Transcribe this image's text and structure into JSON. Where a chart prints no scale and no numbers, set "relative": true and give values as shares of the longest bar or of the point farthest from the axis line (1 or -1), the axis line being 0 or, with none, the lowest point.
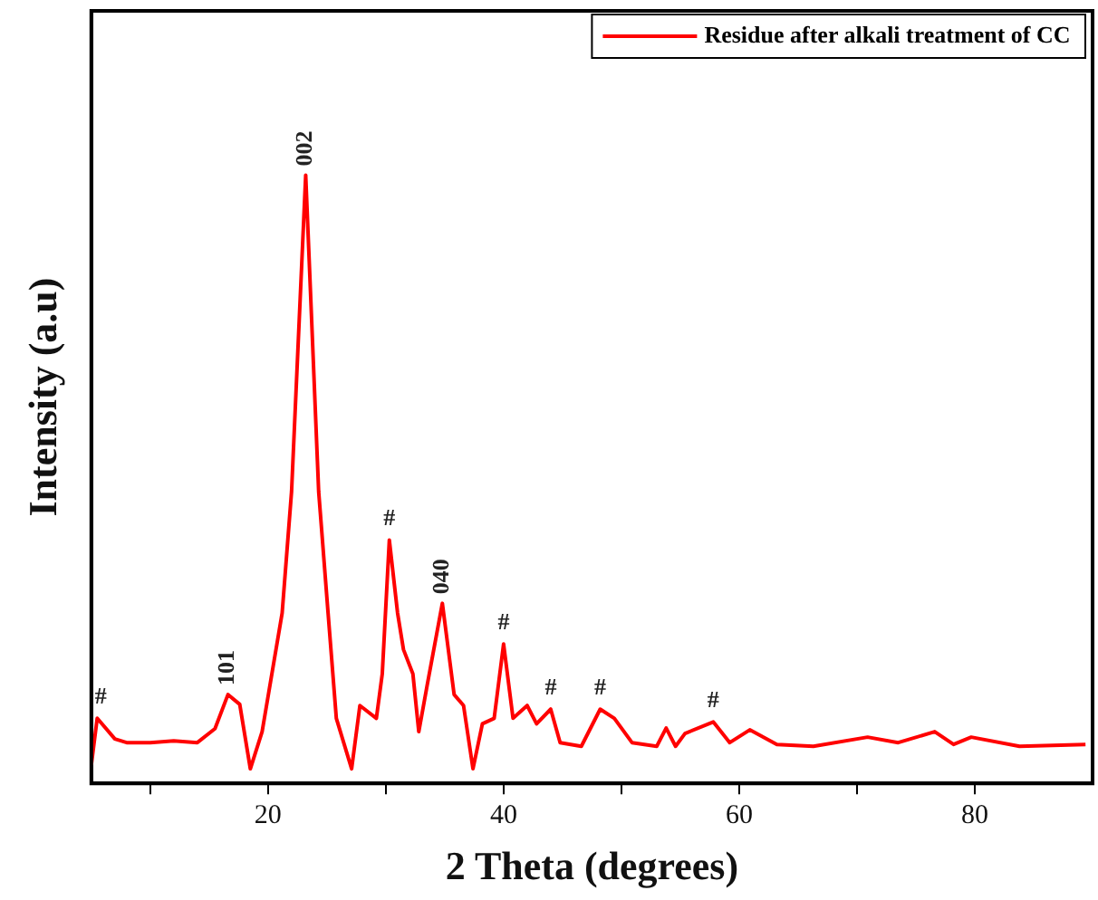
{
  "chart_data": {
    "type": "line",
    "relative": true,
    "xlabel": "2 Theta (degrees)",
    "ylabel": "Intensity (a.u)",
    "xlim": [
      5,
      90
    ],
    "xticks": [
      {
        "value": 10,
        "label": null
      },
      20,
      {
        "value": 30,
        "label": null
      },
      40,
      {
        "value": 50,
        "label": null
      },
      60,
      {
        "value": 70,
        "label": null
      },
      80
    ],
    "legend": "top right",
    "marker": "none",
    "line_style": "solid",
    "grid": false,
    "series": [
      {
        "name": "Residue after alkali treatment of CC",
        "color": "#ff0000",
        "x": [
          5,
          5.5,
          7,
          8,
          10,
          12,
          14,
          15.5,
          16.6,
          17.6,
          18.5,
          19.5,
          21.2,
          22,
          23.2,
          24.3,
          25.1,
          25.8,
          27.1,
          27.8,
          29.2,
          29.7,
          30.3,
          31,
          31.5,
          32.3,
          32.8,
          33.5,
          34.8,
          35.8,
          36.6,
          37.4,
          38.2,
          39.2,
          40,
          40.8,
          42,
          42.8,
          44,
          44.8,
          46.6,
          48.2,
          49.4,
          50.9,
          53,
          53.8,
          54.6,
          55.4,
          57.8,
          59.2,
          60.9,
          63.2,
          66.3,
          70.9,
          73.5,
          76.6,
          78.2,
          79.7,
          83.8,
          89.4
        ],
        "values": [
          0.03,
          0.107,
          0.073,
          0.067,
          0.067,
          0.07,
          0.067,
          0.09,
          0.146,
          0.13,
          0.024,
          0.085,
          0.28,
          0.48,
          1.0,
          0.48,
          0.28,
          0.107,
          0.024,
          0.128,
          0.107,
          0.18,
          0.4,
          0.28,
          0.22,
          0.18,
          0.085,
          0.16,
          0.296,
          0.146,
          0.128,
          0.024,
          0.098,
          0.107,
          0.229,
          0.107,
          0.128,
          0.098,
          0.122,
          0.067,
          0.061,
          0.122,
          0.107,
          0.067,
          0.061,
          0.091,
          0.061,
          0.082,
          0.101,
          0.067,
          0.088,
          0.064,
          0.061,
          0.076,
          0.067,
          0.085,
          0.064,
          0.076,
          0.061,
          0.064
        ]
      }
    ],
    "annotations": [
      {
        "text": "#",
        "x": 5.8,
        "y": 0.107
      },
      {
        "text": "101",
        "x": 16.6,
        "y": 0.146
      },
      {
        "text": "002",
        "x": 23.2,
        "y": 1.0
      },
      {
        "text": "#",
        "x": 30.3,
        "y": 0.4
      },
      {
        "text": "040",
        "x": 34.8,
        "y": 0.296
      },
      {
        "text": "#",
        "x": 40,
        "y": 0.229
      },
      {
        "text": "#",
        "x": 44,
        "y": 0.122
      },
      {
        "text": "#",
        "x": 48.2,
        "y": 0.122
      },
      {
        "text": "#",
        "x": 57.8,
        "y": 0.101
      }
    ]
  }
}
